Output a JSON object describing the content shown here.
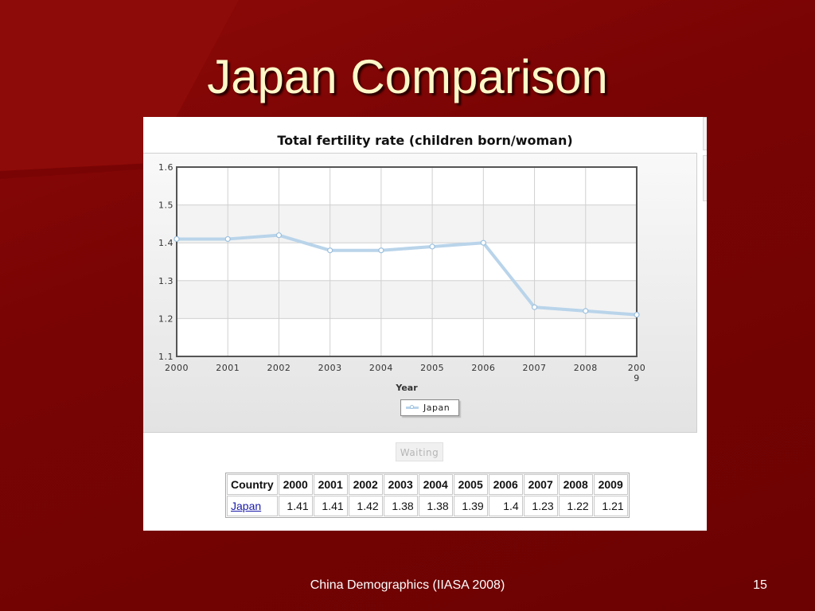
{
  "slide": {
    "title": "Japan Comparison",
    "footer": "China Demographics (IIASA 2008)",
    "page_number": "15"
  },
  "colors": {
    "background": "#7a0404",
    "title": "#fff8c8",
    "series_line": "#b9d4ea",
    "link": "#1a1aaa"
  },
  "waiting_label": "Waiting",
  "chart_data": {
    "type": "line",
    "title": "Total fertility rate (children born/woman)",
    "xlabel": "Year",
    "ylabel": "",
    "categories": [
      "2000",
      "2001",
      "2002",
      "2003",
      "2004",
      "2005",
      "2006",
      "2007",
      "2008",
      "2009"
    ],
    "x_tick_labels": [
      "2000",
      "2001",
      "2002",
      "2003",
      "2004",
      "2005",
      "2006",
      "2007",
      "2008",
      "200\n9"
    ],
    "y_ticks": [
      "1.6",
      "1.5",
      "1.4",
      "1.3",
      "1.2",
      "1.1"
    ],
    "ylim": [
      1.1,
      1.6
    ],
    "grid": true,
    "legend_position": "bottom-center",
    "series": [
      {
        "name": "Japan",
        "values": [
          1.41,
          1.41,
          1.42,
          1.38,
          1.38,
          1.39,
          1.4,
          1.23,
          1.22,
          1.21
        ]
      }
    ]
  },
  "table": {
    "headers": [
      "Country",
      "2000",
      "2001",
      "2002",
      "2003",
      "2004",
      "2005",
      "2006",
      "2007",
      "2008",
      "2009"
    ],
    "rows": [
      [
        "Japan",
        "1.41",
        "1.41",
        "1.42",
        "1.38",
        "1.38",
        "1.39",
        "1.4",
        "1.23",
        "1.22",
        "1.21"
      ]
    ]
  }
}
